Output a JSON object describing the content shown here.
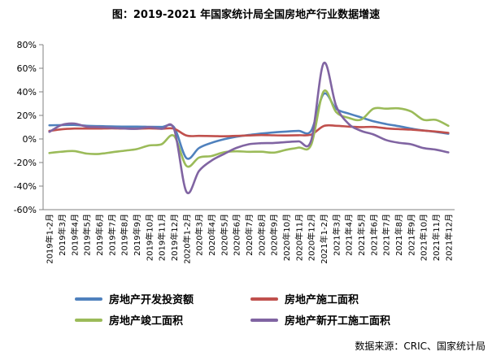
{
  "title": "图：2019-2021 年国家统计局全国房地产行业数据增速",
  "source": "数据来源：CRIC、国家统计局",
  "colors": {
    "axis": "#808080",
    "text": "#000000",
    "series_blue": "#4F81BD",
    "series_red": "#C0504D",
    "series_green": "#9BBB59",
    "series_purple": "#8064A2"
  },
  "chart_data": {
    "type": "line",
    "title": "图：2019-2021 年国家统计局全国房地产行业数据增速",
    "xlabel": "",
    "ylabel": "",
    "ylim": [
      -60,
      80
    ],
    "ytick_step": 20,
    "ytick_suffix": "%",
    "grid": false,
    "smooth": true,
    "legend_position": "bottom",
    "categories": [
      "2019年1-2月",
      "2019年3月",
      "2019年4月",
      "2019年5月",
      "2019年6月",
      "2019年7月",
      "2019年8月",
      "2019年9月",
      "2019年10月",
      "2019年11月",
      "2019年12月",
      "2020年1-2月",
      "2020年3月",
      "2020年4月",
      "2020年5月",
      "2020年6月",
      "2020年7月",
      "2020年8月",
      "2020年9月",
      "2020年10月",
      "2020年11月",
      "2020年12月",
      "2021年1-2月",
      "2021年3月",
      "2021年4月",
      "2021年5月",
      "2021年6月",
      "2021年7月",
      "2021年8月",
      "2021年9月",
      "2021年10月",
      "2021年11月",
      "2021年12月"
    ],
    "series": [
      {
        "name": "房地产开发投资额",
        "color": "#4F81BD",
        "values": [
          11.6,
          11.8,
          11.9,
          11.2,
          10.9,
          10.6,
          10.5,
          10.5,
          10.3,
          10.2,
          9.9,
          -16.3,
          -7.7,
          -3.3,
          -0.3,
          1.9,
          3.4,
          4.6,
          5.6,
          6.3,
          6.8,
          7.0,
          38.3,
          25.6,
          21.6,
          18.3,
          15.0,
          12.7,
          10.9,
          8.8,
          7.2,
          6.0,
          4.4
        ]
      },
      {
        "name": "房地产施工面积",
        "color": "#C0504D",
        "values": [
          6.8,
          8.2,
          8.8,
          8.8,
          8.8,
          9.0,
          8.8,
          8.7,
          9.0,
          8.7,
          8.7,
          2.9,
          2.6,
          2.5,
          2.3,
          2.6,
          3.0,
          3.3,
          3.1,
          3.0,
          3.2,
          3.7,
          11.0,
          11.2,
          10.5,
          10.1,
          10.2,
          9.0,
          8.4,
          7.9,
          7.1,
          6.3,
          5.2
        ]
      },
      {
        "name": "房地产竣工面积",
        "color": "#9BBB59",
        "values": [
          -11.9,
          -10.8,
          -10.3,
          -12.4,
          -12.7,
          -11.3,
          -10.0,
          -8.6,
          -5.5,
          -4.5,
          2.6,
          -22.9,
          -15.8,
          -14.5,
          -11.3,
          -10.5,
          -10.9,
          -10.8,
          -11.6,
          -9.2,
          -7.3,
          -4.9,
          40.4,
          22.9,
          17.9,
          16.4,
          25.7,
          25.7,
          26.0,
          23.4,
          16.3,
          16.2,
          11.2
        ]
      },
      {
        "name": "房地产新开工施工面积",
        "color": "#8064A2",
        "values": [
          6.0,
          11.9,
          13.1,
          10.5,
          10.1,
          9.5,
          8.9,
          8.6,
          10.0,
          8.6,
          8.5,
          -44.9,
          -27.2,
          -18.4,
          -12.8,
          -7.6,
          -4.5,
          -3.6,
          -3.4,
          -2.6,
          -2.0,
          -1.2,
          64.3,
          28.2,
          12.8,
          6.9,
          3.8,
          -0.9,
          -3.2,
          -4.5,
          -7.7,
          -9.1,
          -11.4
        ]
      }
    ]
  }
}
